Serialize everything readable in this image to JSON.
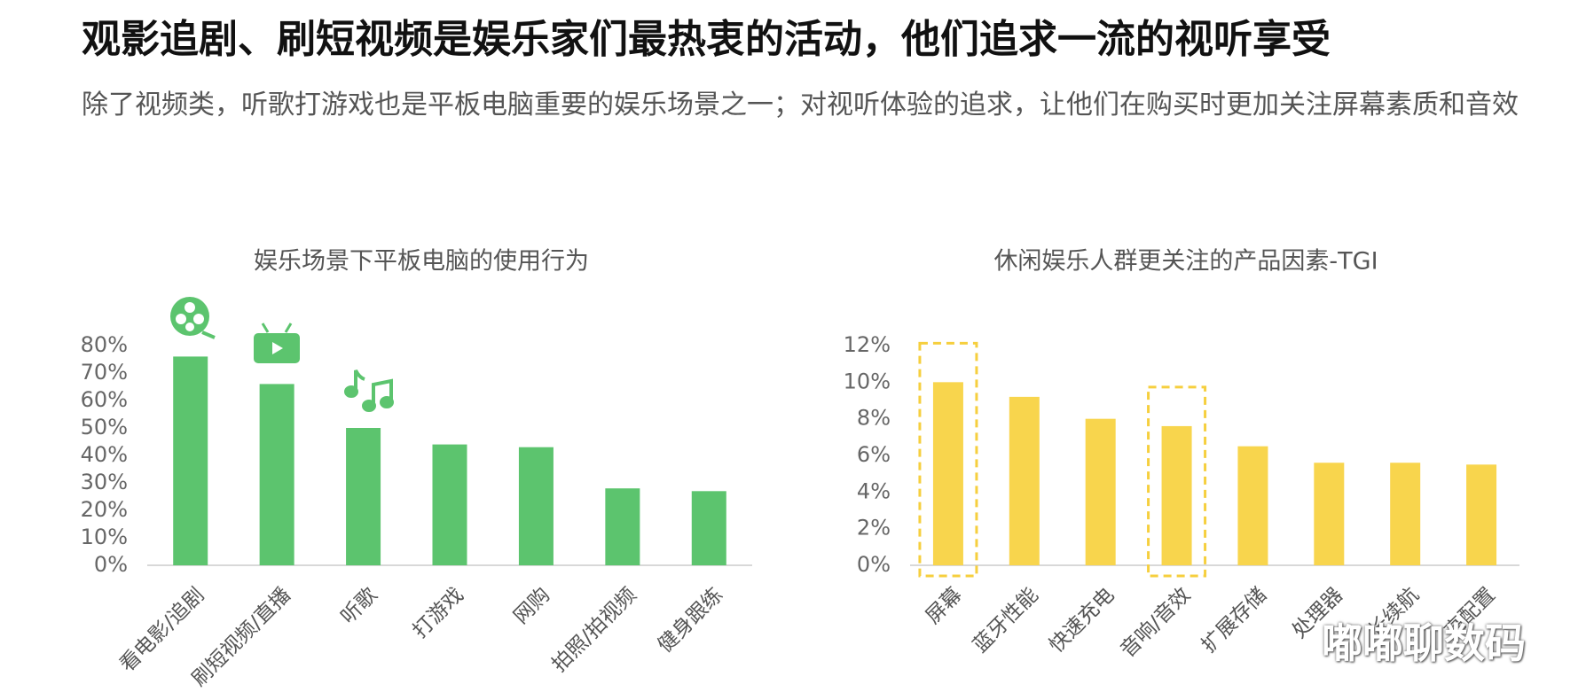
{
  "header": {
    "title": "观影追剧、刷短视频是娱乐家们最热衷的活动，他们追求一流的视听享受",
    "subtitle": "除了视频类，听歌打游戏也是平板电脑重要的娱乐场景之一；对视听体验的追求，让他们在购买时更加关注屏幕素质和音效"
  },
  "chart_data": [
    {
      "type": "bar",
      "title": "娱乐场景下平板电脑的使用行为",
      "categories": [
        "看电影/追剧",
        "刷短视频/直播",
        "听歌",
        "打游戏",
        "网购",
        "拍照/拍视频",
        "健身跟练"
      ],
      "values": [
        76,
        66,
        50,
        44,
        43,
        28,
        27
      ],
      "color": "#5cc46e",
      "ylim": [
        0,
        80
      ],
      "yticks": [
        {
          "value": 0,
          "label": "0%"
        },
        {
          "value": 10,
          "label": "10%"
        },
        {
          "value": 20,
          "label": "20%"
        },
        {
          "value": 30,
          "label": "30%"
        },
        {
          "value": 40,
          "label": "40%"
        },
        {
          "value": 50,
          "label": "50%"
        },
        {
          "value": 60,
          "label": "60%"
        },
        {
          "value": 70,
          "label": "70%"
        },
        {
          "value": 80,
          "label": "80%"
        }
      ],
      "grid": false
    },
    {
      "type": "bar",
      "title": "休闲娱乐人群更关注的产品因素-TGI",
      "categories": [
        "屏幕",
        "蓝牙性能",
        "快速充电",
        "音响/音效",
        "扩展存储",
        "处理器",
        "长续航",
        "高配置"
      ],
      "values": [
        10.0,
        9.2,
        8.0,
        7.6,
        6.5,
        5.6,
        5.6,
        5.5
      ],
      "color": "#f8d54d",
      "ylim": [
        0,
        12
      ],
      "yticks": [
        {
          "value": 0,
          "label": "0%"
        },
        {
          "value": 2,
          "label": "2%"
        },
        {
          "value": 4,
          "label": "4%"
        },
        {
          "value": 6,
          "label": "6%"
        },
        {
          "value": 8,
          "label": "8%"
        },
        {
          "value": 10,
          "label": "10%"
        },
        {
          "value": 12,
          "label": "12%"
        }
      ],
      "grid": false,
      "highlight_indices": [
        0,
        3
      ],
      "highlight_color": "#f6cf3e"
    }
  ],
  "watermark": "嘟嘟聊数码"
}
